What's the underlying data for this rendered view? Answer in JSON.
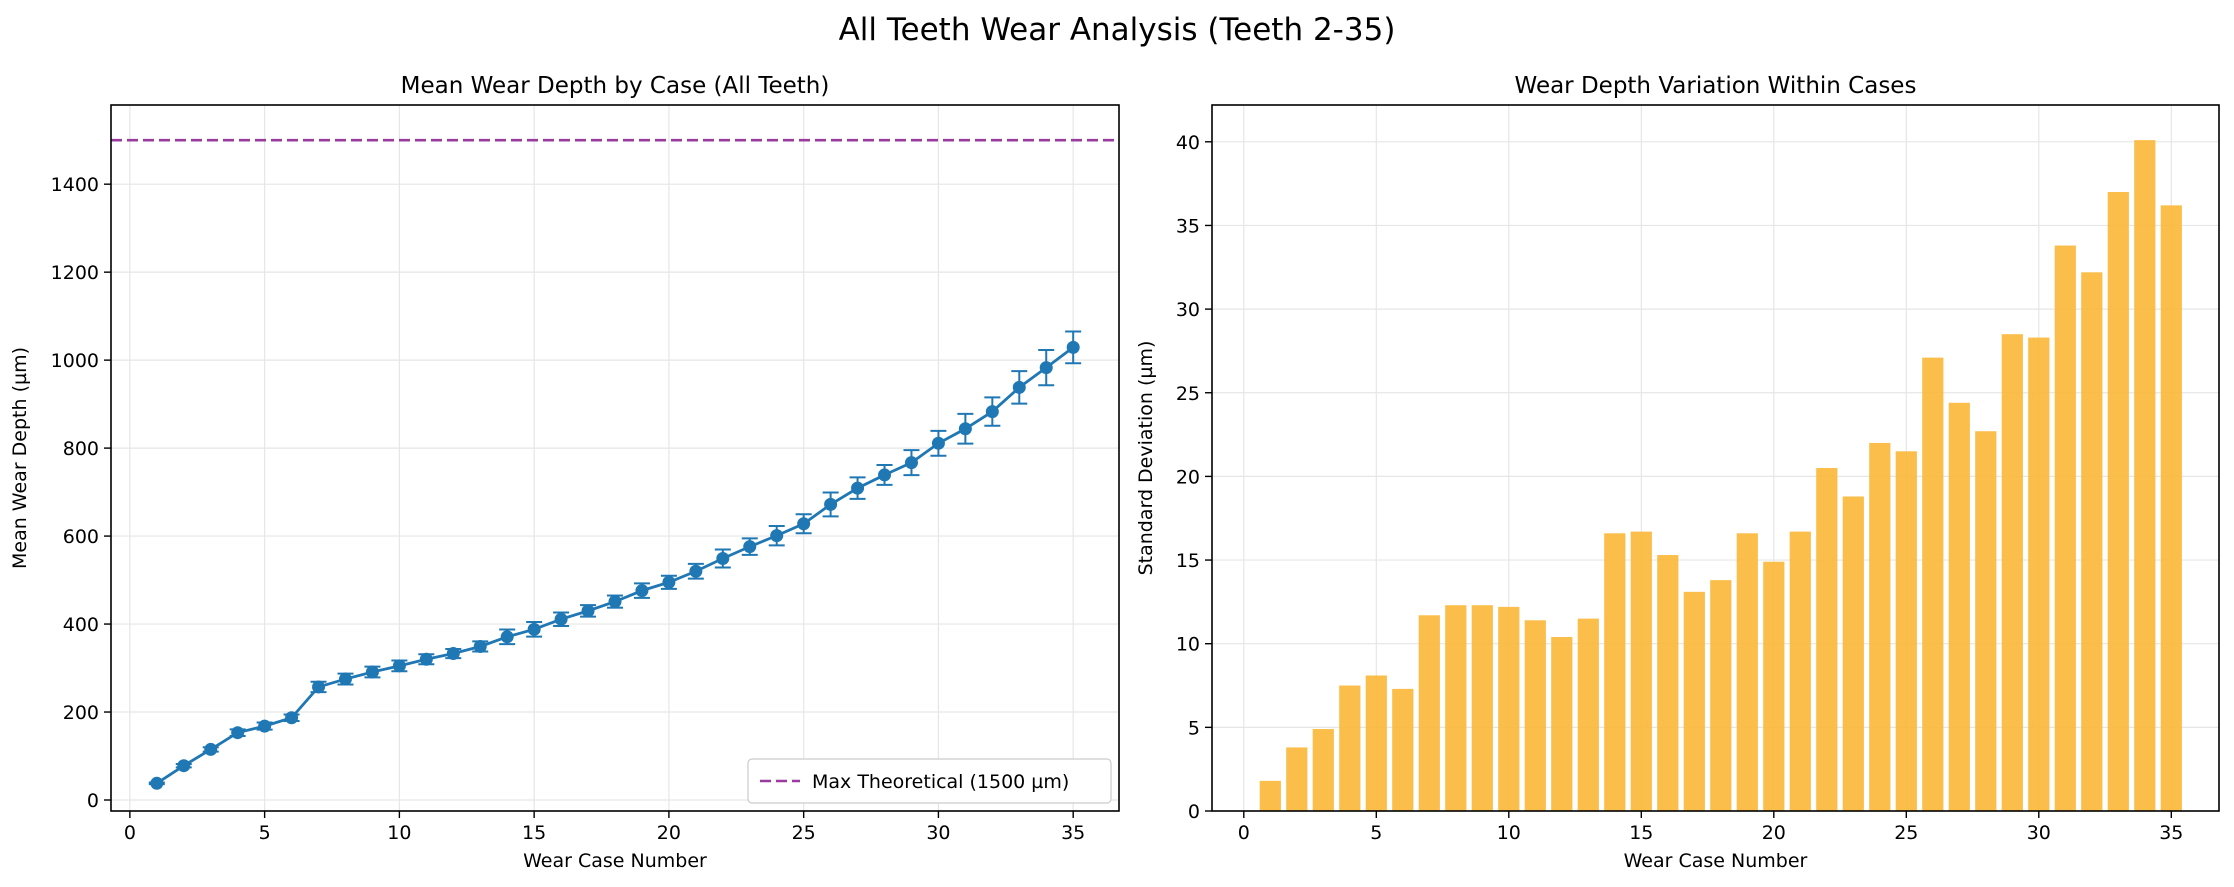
{
  "figure": {
    "suptitle": "All Teeth Wear Analysis (Teeth 2-35)"
  },
  "chart_data": [
    {
      "type": "line",
      "title": "Mean Wear Depth by Case (All Teeth)",
      "xlabel": "Wear Case Number",
      "ylabel": "Mean Wear Depth (µm)",
      "xlim": [
        -0.7,
        36.7
      ],
      "ylim": [
        -25,
        1580
      ],
      "xticks": [
        0,
        5,
        10,
        15,
        20,
        25,
        30,
        35
      ],
      "yticks": [
        0,
        200,
        400,
        600,
        800,
        1000,
        1200,
        1400
      ],
      "grid": true,
      "color": "#1f77b4",
      "series": [
        {
          "x": [
            1,
            2,
            3,
            4,
            5,
            6,
            7,
            8,
            9,
            10,
            11,
            12,
            13,
            14,
            15,
            16,
            17,
            18,
            19,
            20,
            21,
            22,
            23,
            24,
            25,
            26,
            27,
            28,
            29,
            30,
            31,
            32,
            33,
            34,
            35
          ],
          "values": [
            38,
            78,
            115,
            153,
            168,
            187,
            257,
            275,
            291,
            305,
            320,
            333,
            349,
            371,
            388,
            411,
            430,
            451,
            476,
            495,
            520,
            549,
            576,
            601,
            628,
            672,
            709,
            739,
            767,
            811,
            844,
            883,
            938,
            983,
            1029
          ],
          "error": [
            1.8,
            3.8,
            4.9,
            7.5,
            8.1,
            7.3,
            11.7,
            12.3,
            12.3,
            12.2,
            11.4,
            10.4,
            11.5,
            16.6,
            16.7,
            15.3,
            13.1,
            13.8,
            16.6,
            14.9,
            16.7,
            20.5,
            18.8,
            22.0,
            21.5,
            27.1,
            24.4,
            22.7,
            28.5,
            28.3,
            33.8,
            32.2,
            37.0,
            40.1,
            36.2
          ]
        }
      ],
      "hline": {
        "y": 1500,
        "color": "#9a3ba0",
        "label": "Max Theoretical (1500 µm)"
      },
      "legend": "bottom-right"
    },
    {
      "type": "bar",
      "title": "Wear Depth Variation Within Cases",
      "xlabel": "Wear Case Number",
      "ylabel": "Standard Deviation (µm)",
      "xlim": [
        -1.2,
        36.8
      ],
      "ylim": [
        0,
        42.2
      ],
      "xticks": [
        0,
        5,
        10,
        15,
        20,
        25,
        30,
        35
      ],
      "yticks": [
        0,
        5,
        10,
        15,
        20,
        25,
        30,
        35,
        40
      ],
      "grid": true,
      "color": "#fbb83b",
      "categories": [
        1,
        2,
        3,
        4,
        5,
        6,
        7,
        8,
        9,
        10,
        11,
        12,
        13,
        14,
        15,
        16,
        17,
        18,
        19,
        20,
        21,
        22,
        23,
        24,
        25,
        26,
        27,
        28,
        29,
        30,
        31,
        32,
        33,
        34,
        35
      ],
      "values": [
        1.8,
        3.8,
        4.9,
        7.5,
        8.1,
        7.3,
        11.7,
        12.3,
        12.3,
        12.2,
        11.4,
        10.4,
        11.5,
        16.6,
        16.7,
        15.3,
        13.1,
        13.8,
        16.6,
        14.9,
        16.7,
        20.5,
        18.8,
        22.0,
        21.5,
        27.1,
        24.4,
        22.7,
        28.5,
        28.3,
        33.8,
        32.2,
        37.0,
        40.1,
        36.2
      ]
    }
  ]
}
